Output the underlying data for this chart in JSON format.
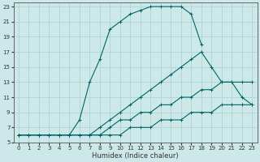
{
  "xlabel": "Humidex (Indice chaleur)",
  "ylabel": "",
  "bg_color": "#cde8e8",
  "grid_color": "#afd4d4",
  "line_color": "#006666",
  "xlim": [
    -0.5,
    23.5
  ],
  "ylim": [
    5,
    23.5
  ],
  "xticks": [
    0,
    1,
    2,
    3,
    4,
    5,
    6,
    7,
    8,
    9,
    10,
    11,
    12,
    13,
    14,
    15,
    16,
    17,
    18,
    19,
    20,
    21,
    22,
    23
  ],
  "yticks": [
    5,
    7,
    9,
    11,
    13,
    15,
    17,
    19,
    21,
    23
  ],
  "series": [
    {
      "x": [
        0,
        1,
        2,
        3,
        4,
        5,
        6,
        7,
        8,
        9,
        10,
        11,
        12,
        13,
        14,
        15,
        16,
        17,
        18
      ],
      "y": [
        6,
        6,
        6,
        6,
        6,
        6,
        8,
        13,
        16,
        20,
        21,
        22,
        22.5,
        23,
        23,
        23,
        23,
        22,
        18
      ]
    },
    {
      "x": [
        0,
        1,
        2,
        3,
        4,
        5,
        6,
        7,
        8,
        9,
        10,
        11,
        12,
        13,
        14,
        15,
        16,
        17,
        18,
        19,
        20,
        21,
        22,
        23
      ],
      "y": [
        6,
        6,
        6,
        6,
        6,
        6,
        6,
        6,
        7,
        8,
        9,
        10,
        11,
        12,
        13,
        14,
        15,
        16,
        17,
        15,
        13,
        13,
        11,
        10
      ]
    },
    {
      "x": [
        0,
        1,
        2,
        3,
        4,
        5,
        6,
        7,
        8,
        9,
        10,
        11,
        12,
        13,
        14,
        15,
        16,
        17,
        18,
        19,
        20,
        21,
        22,
        23
      ],
      "y": [
        6,
        6,
        6,
        6,
        6,
        6,
        6,
        6,
        6,
        7,
        8,
        8,
        9,
        9,
        10,
        10,
        11,
        11,
        12,
        12,
        13,
        13,
        13,
        13
      ]
    },
    {
      "x": [
        0,
        1,
        2,
        3,
        4,
        5,
        6,
        7,
        8,
        9,
        10,
        11,
        12,
        13,
        14,
        15,
        16,
        17,
        18,
        19,
        20,
        21,
        22,
        23
      ],
      "y": [
        6,
        6,
        6,
        6,
        6,
        6,
        6,
        6,
        6,
        6,
        6,
        7,
        7,
        7,
        8,
        8,
        8,
        9,
        9,
        9,
        10,
        10,
        10,
        10
      ]
    }
  ]
}
